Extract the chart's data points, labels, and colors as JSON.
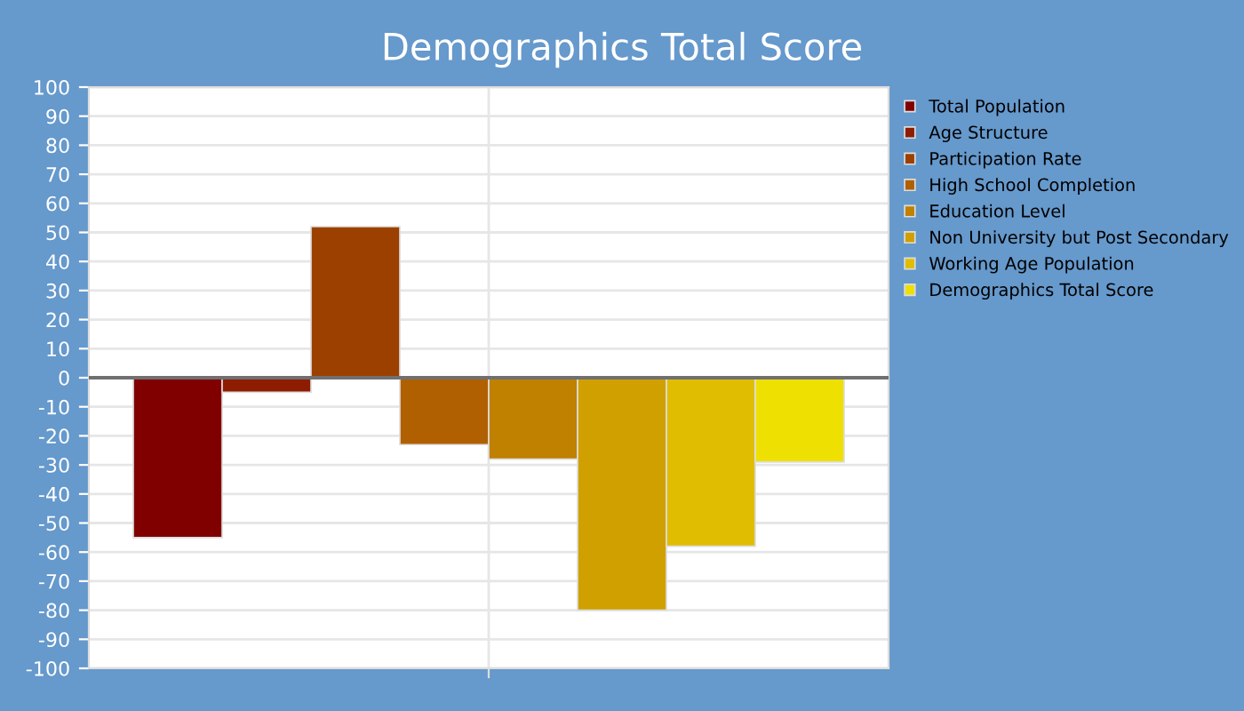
{
  "chart_data": {
    "type": "bar",
    "title": "Demographics Total Score",
    "categories": [
      null
    ],
    "series": [
      {
        "name": "Total Population",
        "color": "#800000",
        "values": [
          -55
        ]
      },
      {
        "name": "Age Structure",
        "color": "#8e1c00",
        "values": [
          -5
        ]
      },
      {
        "name": "Participation Rate",
        "color": "#9c4000",
        "values": [
          52
        ]
      },
      {
        "name": "High School Completion",
        "color": "#b06000",
        "values": [
          -23
        ]
      },
      {
        "name": "Education Level",
        "color": "#c08000",
        "values": [
          -28
        ]
      },
      {
        "name": "Non University but Post Secondary",
        "color": "#d0a000",
        "values": [
          -80
        ]
      },
      {
        "name": "Working Age Population",
        "color": "#e0bd00",
        "values": [
          -58
        ]
      },
      {
        "name": "Demographics Total Score",
        "color": "#eee000",
        "values": [
          -29
        ]
      }
    ],
    "ylim": [
      -100,
      100
    ],
    "yticks": [
      -100,
      -90,
      -80,
      -70,
      -60,
      -50,
      -40,
      -30,
      -20,
      -10,
      0,
      10,
      20,
      30,
      40,
      50,
      60,
      70,
      80,
      90,
      100
    ],
    "grid": true,
    "legend": "right"
  }
}
